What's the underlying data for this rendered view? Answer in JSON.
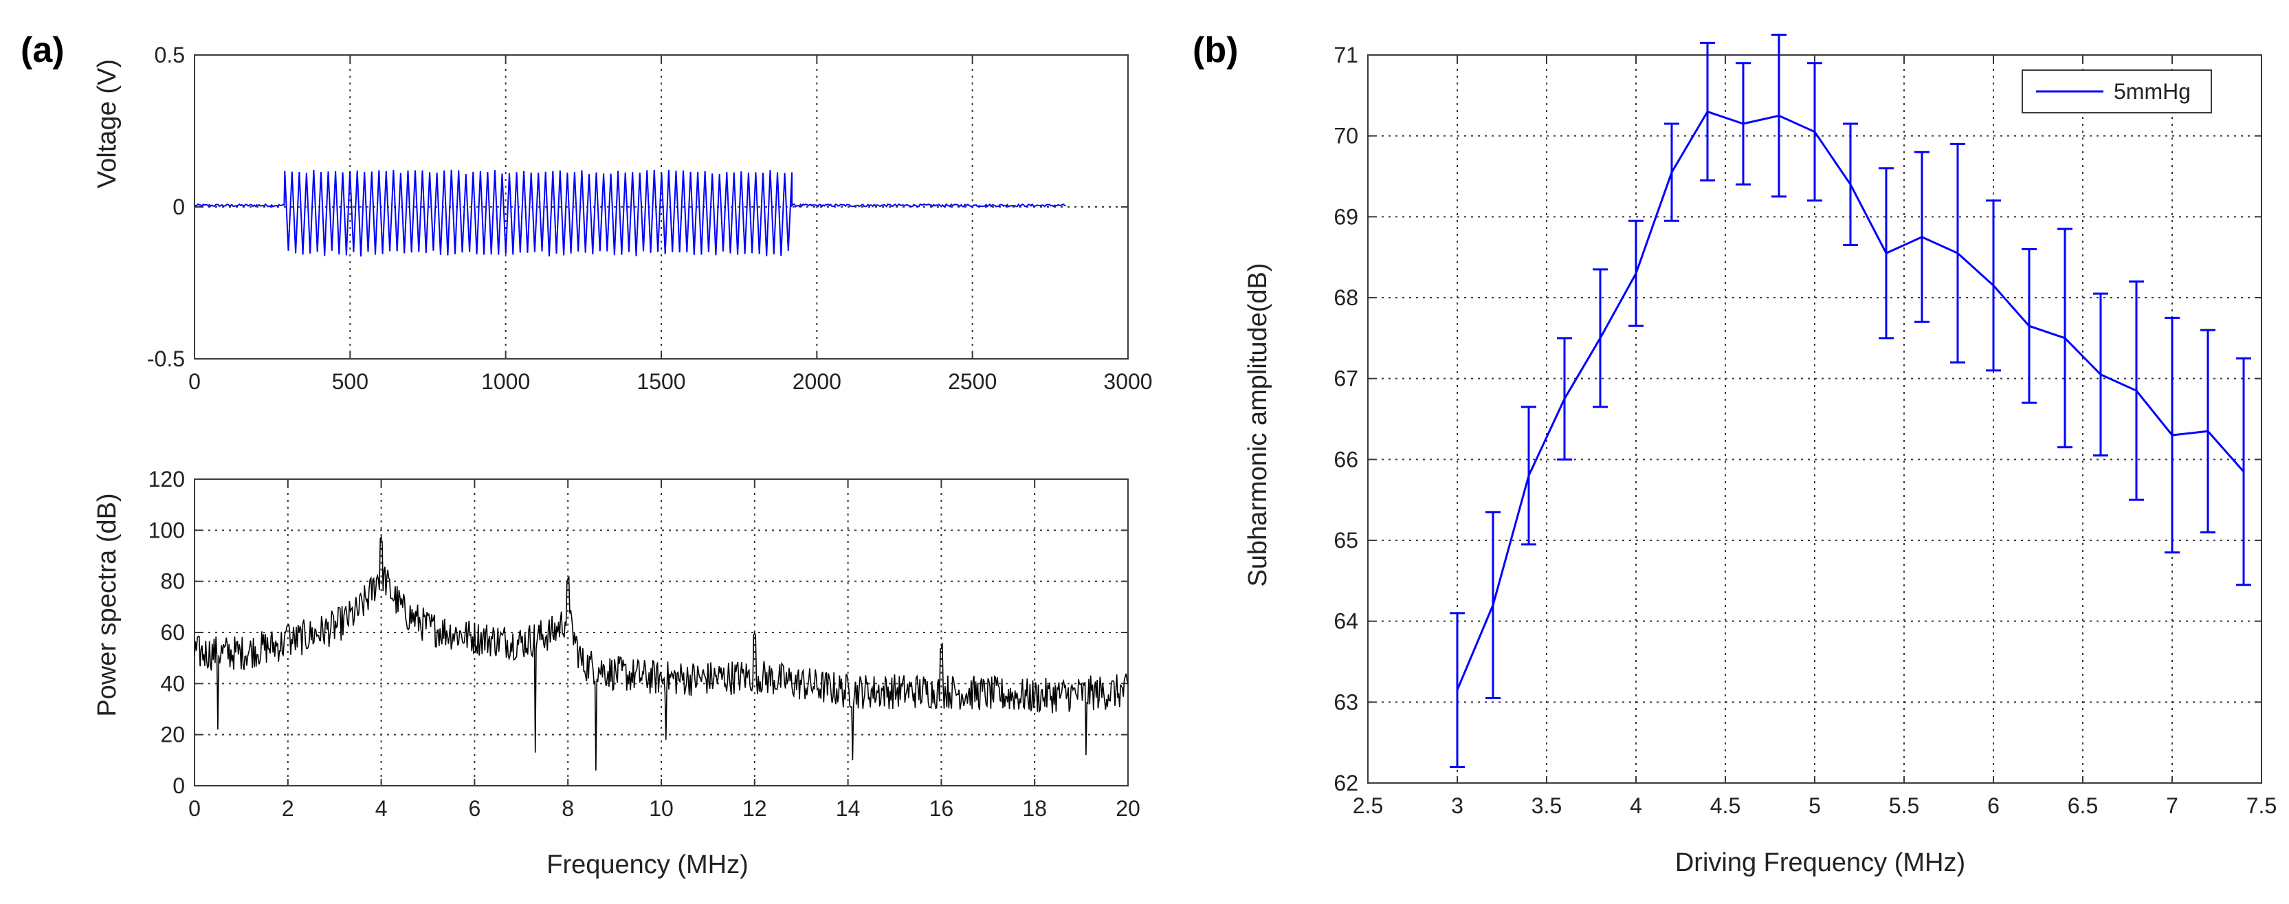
{
  "panels": {
    "a": "(a)",
    "b": "(b)"
  },
  "chart_data": [
    {
      "id": "voltage",
      "type": "line",
      "title": "",
      "xlabel": "",
      "ylabel": "Voltage (V)",
      "xlim": [
        0,
        3000
      ],
      "ylim": [
        -0.5,
        0.5
      ],
      "xticks": [
        0,
        500,
        1000,
        1500,
        2000,
        2500,
        3000
      ],
      "yticks": [
        -0.5,
        0,
        0.5
      ],
      "grid": true,
      "color": "#0000ff",
      "series": [
        {
          "name": "voltage",
          "signal": {
            "x_end": 2800,
            "burst_start": 290,
            "burst_end": 1920,
            "cycles": 70,
            "amplitude_pos": 0.12,
            "amplitude_neg": -0.16,
            "baseline": 0.005
          }
        }
      ]
    },
    {
      "id": "power",
      "type": "line",
      "title": "",
      "xlabel": "Frequency  (MHz)",
      "ylabel": "Power spectra  (dB)",
      "xlim": [
        0,
        20
      ],
      "ylim": [
        0,
        120
      ],
      "xticks": [
        0,
        2,
        4,
        6,
        8,
        10,
        12,
        14,
        16,
        18,
        20
      ],
      "yticks": [
        0,
        20,
        40,
        60,
        80,
        100,
        120
      ],
      "grid": true,
      "color": "#000000",
      "series": [
        {
          "name": "spectrum",
          "envelope_x": [
            0,
            1,
            2,
            3,
            3.5,
            3.8,
            4,
            4.2,
            4.5,
            5,
            6,
            7,
            7.7,
            8,
            8.3,
            9,
            10,
            11,
            12,
            13,
            14,
            15,
            16,
            17,
            18,
            19,
            20
          ],
          "envelope_y": [
            52,
            52,
            56,
            62,
            68,
            76,
            84,
            76,
            68,
            62,
            58,
            56,
            60,
            66,
            48,
            44,
            42,
            42,
            43,
            40,
            37,
            37,
            37,
            36,
            35,
            36,
            37
          ],
          "peaks": [
            {
              "x": 2,
              "y": 65
            },
            {
              "x": 4,
              "y": 98
            },
            {
              "x": 8,
              "y": 82
            },
            {
              "x": 12,
              "y": 60
            },
            {
              "x": 16,
              "y": 56
            }
          ],
          "dips": [
            {
              "x": 0.5,
              "y": 22
            },
            {
              "x": 7.3,
              "y": 13
            },
            {
              "x": 8.6,
              "y": 6
            },
            {
              "x": 10.1,
              "y": 18
            },
            {
              "x": 14.1,
              "y": 10
            },
            {
              "x": 19.1,
              "y": 12
            }
          ]
        }
      ]
    },
    {
      "id": "subharmonic",
      "type": "line",
      "title": "",
      "xlabel": "Driving Frequency  (MHz)",
      "ylabel": "Subharmonic amplitude(dB)",
      "xlim": [
        2.5,
        7.5
      ],
      "ylim": [
        62,
        71
      ],
      "xticks": [
        2.5,
        3,
        3.5,
        4,
        4.5,
        5,
        5.5,
        6,
        6.5,
        7,
        7.5
      ],
      "xtick_labels": [
        "2.5",
        "3",
        "3.5",
        "4",
        "4.5",
        "5",
        "5.5",
        "6",
        "6.5",
        "7",
        "7.5"
      ],
      "yticks": [
        62,
        63,
        64,
        65,
        66,
        67,
        68,
        69,
        70,
        71
      ],
      "grid": true,
      "legend": "top-right",
      "color": "#0000ff",
      "series": [
        {
          "name": "5mmHg",
          "x": [
            3.0,
            3.2,
            3.4,
            3.6,
            3.8,
            4.0,
            4.2,
            4.4,
            4.6,
            4.8,
            5.0,
            5.2,
            5.4,
            5.6,
            5.8,
            6.0,
            6.2,
            6.4,
            6.6,
            6.8,
            7.0,
            7.2,
            7.4
          ],
          "y": [
            63.15,
            64.2,
            65.8,
            66.75,
            67.5,
            68.3,
            69.55,
            70.3,
            70.15,
            70.25,
            70.05,
            69.4,
            68.55,
            68.75,
            68.55,
            68.15,
            67.65,
            67.5,
            67.05,
            66.85,
            66.3,
            66.35,
            65.85
          ],
          "err": [
            0.95,
            1.15,
            0.85,
            0.75,
            0.85,
            0.65,
            0.6,
            0.85,
            0.75,
            1.0,
            0.85,
            0.75,
            1.05,
            1.05,
            1.35,
            1.05,
            0.95,
            1.35,
            1.0,
            1.35,
            1.45,
            1.25,
            1.4
          ]
        }
      ]
    }
  ]
}
